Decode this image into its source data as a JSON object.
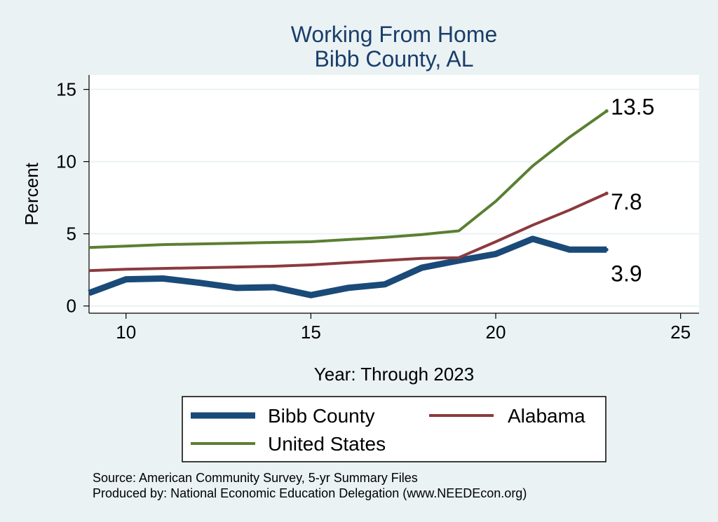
{
  "chart_data": {
    "type": "line",
    "title": [
      "Working From Home",
      "Bibb County, AL"
    ],
    "xlabel": "Year: Through 2023",
    "ylabel": "Percent",
    "xlim": [
      9,
      25.5
    ],
    "ylim": [
      -0.5,
      16
    ],
    "xticks": [
      10,
      15,
      20,
      25
    ],
    "yticks": [
      0,
      5,
      10,
      15
    ],
    "grid": "horizontal",
    "series": [
      {
        "name": "Bibb County",
        "color": "#1a4a78",
        "x": [
          9,
          10,
          11,
          12,
          13,
          14,
          15,
          16,
          17,
          18,
          19,
          20,
          21,
          22,
          23
        ],
        "values": [
          0.9,
          1.85,
          1.9,
          1.6,
          1.25,
          1.3,
          0.75,
          1.25,
          1.5,
          2.65,
          3.15,
          3.6,
          4.65,
          3.9,
          3.9
        ],
        "end_label": "3.9"
      },
      {
        "name": "Alabama",
        "color": "#8b3a3e",
        "x": [
          9,
          10,
          11,
          12,
          13,
          14,
          15,
          16,
          17,
          18,
          19,
          20,
          21,
          22,
          23
        ],
        "values": [
          2.45,
          2.55,
          2.6,
          2.65,
          2.7,
          2.75,
          2.85,
          3.0,
          3.15,
          3.3,
          3.35,
          4.45,
          5.6,
          6.65,
          7.8
        ],
        "end_label": "7.8"
      },
      {
        "name": "United States",
        "color": "#5a7f32",
        "x": [
          9,
          10,
          11,
          12,
          13,
          14,
          15,
          16,
          17,
          18,
          19,
          20,
          21,
          22,
          23
        ],
        "values": [
          4.05,
          4.15,
          4.25,
          4.3,
          4.35,
          4.4,
          4.45,
          4.6,
          4.75,
          4.95,
          5.2,
          7.25,
          9.7,
          11.7,
          13.5
        ],
        "end_label": "13.5"
      }
    ],
    "legend": {
      "placement": "bottom"
    },
    "source_lines": [
      "Source: American Community Survey, 5-yr Summary Files",
      "Produced by: National Economic Education Delegation (www.NEEDEcon.org)"
    ]
  }
}
